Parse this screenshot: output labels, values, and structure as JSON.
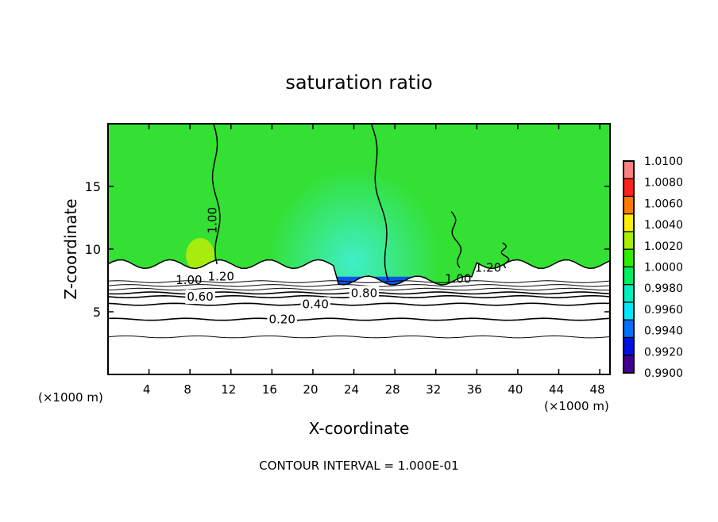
{
  "chart_data": {
    "type": "heatmap",
    "title": "saturation ratio",
    "xlabel": "X-coordinate",
    "ylabel": "Z-coordinate",
    "x_unit_left": "(×1000 m)",
    "x_unit_right": "(×1000 m)",
    "footer": "CONTOUR INTERVAL = 1.000E-01",
    "xlim": [
      0,
      49
    ],
    "ylim": [
      0,
      20
    ],
    "xticks": [
      4,
      8,
      12,
      16,
      20,
      24,
      28,
      32,
      36,
      40,
      44,
      48
    ],
    "yticks": [
      5,
      10,
      15
    ],
    "colorbar": {
      "labels": [
        "1.0100",
        "1.0080",
        "1.0060",
        "1.0040",
        "1.0020",
        "1.0000",
        "0.9980",
        "0.9960",
        "0.9940",
        "0.9920",
        "0.9900"
      ],
      "colors": [
        "#ff8080",
        "#ff2020",
        "#ff7a00",
        "#ffee00",
        "#a8f000",
        "#2af000",
        "#00f060",
        "#00f0c0",
        "#00e8ff",
        "#0070ff",
        "#0010e0",
        "#400090"
      ]
    },
    "field": {
      "background_color": "#33e033",
      "cloud_base_z": 8.8,
      "dry_color": "#ffffff",
      "low_value_region": {
        "x": [
          22,
          31
        ],
        "z": [
          7.2,
          7.8
        ],
        "color": "#0030ff"
      },
      "cyan_plume": {
        "x_center": 24,
        "z_center": 10.5,
        "color": "#40f0d0"
      }
    },
    "contours": [
      {
        "level": 0.0,
        "z": 3.0,
        "label": ""
      },
      {
        "level": 0.2,
        "z": 4.4,
        "label": "0.20"
      },
      {
        "level": 0.4,
        "z": 5.6,
        "label": "0.40"
      },
      {
        "level": 0.6,
        "z": 6.2,
        "label": "0.60"
      },
      {
        "level": 0.8,
        "z": 6.5,
        "label": "0.80"
      },
      {
        "level": 0.9,
        "z": 6.8,
        "label": ""
      },
      {
        "level": 1.0,
        "z": 7.1,
        "label": ""
      },
      {
        "level": 1.1,
        "z": 7.4,
        "label": ""
      }
    ],
    "inline_labels": [
      {
        "text": "1.00",
        "x": 7.9,
        "z": 7.2
      },
      {
        "text": "1.20",
        "x": 10.1,
        "z": 7.5
      },
      {
        "text": "1.00",
        "x": 10.6,
        "z": 12.3
      },
      {
        "text": "1.20",
        "x": 37.1,
        "z": 8.2
      },
      {
        "text": "1.00",
        "x": 36.5,
        "z": 7.3
      }
    ]
  }
}
